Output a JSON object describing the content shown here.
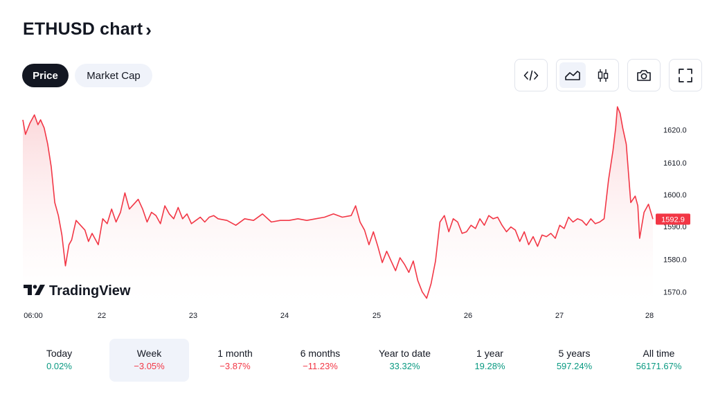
{
  "header": {
    "title": "ETHUSD chart",
    "chevron": "›"
  },
  "tabs": [
    {
      "label": "Price",
      "selected": true
    },
    {
      "label": "Market Cap",
      "selected": false
    }
  ],
  "toolbar": {
    "icons": [
      "embed-code-icon",
      "area-chart-icon",
      "candles-chart-icon",
      "camera-icon",
      "fullscreen-icon"
    ],
    "active": "area-chart-icon"
  },
  "colors": {
    "line": "#f23645",
    "fill_top": "#fbd3d6",
    "positive": "#089981",
    "negative": "#f23645",
    "text": "#131722"
  },
  "watermark": "TradingView",
  "chart_data": {
    "type": "area",
    "title": "",
    "xlabel": "",
    "ylabel": "",
    "x_tick_labels": [
      "06:00",
      "22",
      "23",
      "24",
      "25",
      "26",
      "27",
      "28"
    ],
    "y_tick_labels": [
      "1620.0",
      "1610.0",
      "1600.0",
      "1590.0",
      "1580.0",
      "1570.0"
    ],
    "ylim": [
      1566.5,
      1628.4
    ],
    "xlim": [
      0,
      7.1
    ],
    "last_price_label": "1592.9",
    "grid": false,
    "series": [
      {
        "x": [
          0,
          0.03,
          0.08,
          0.13,
          0.17,
          0.2,
          0.24,
          0.28,
          0.32,
          0.36,
          0.4,
          0.44,
          0.48,
          0.52,
          0.55,
          0.57,
          0.6,
          0.65,
          0.7,
          0.74,
          0.78,
          0.85,
          0.9,
          0.95,
          1.0,
          1.05,
          1.1,
          1.15,
          1.2,
          1.25,
          1.3,
          1.35,
          1.4,
          1.45,
          1.5,
          1.55,
          1.6,
          1.65,
          1.7,
          1.75,
          1.8,
          1.85,
          1.9,
          1.95,
          2.0,
          2.05,
          2.1,
          2.15,
          2.2,
          2.3,
          2.4,
          2.5,
          2.6,
          2.7,
          2.8,
          2.9,
          3.0,
          3.1,
          3.2,
          3.3,
          3.4,
          3.5,
          3.6,
          3.7,
          3.75,
          3.8,
          3.85,
          3.9,
          3.95,
          4.0,
          4.05,
          4.1,
          4.15,
          4.2,
          4.25,
          4.3,
          4.35,
          4.4,
          4.45,
          4.5,
          4.55,
          4.6,
          4.65,
          4.7,
          4.75,
          4.8,
          4.85,
          4.9,
          4.95,
          5.0,
          5.05,
          5.1,
          5.15,
          5.2,
          5.25,
          5.3,
          5.35,
          5.4,
          5.45,
          5.5,
          5.55,
          5.6,
          5.65,
          5.7,
          5.75,
          5.8,
          5.85,
          5.9,
          5.95,
          6.0,
          6.05,
          6.1,
          6.15,
          6.2,
          6.25,
          6.3,
          6.35,
          6.4,
          6.45,
          6.5,
          6.55,
          6.6,
          6.65,
          6.68,
          6.7,
          6.73,
          6.76,
          6.8,
          6.85,
          6.9,
          6.93,
          6.95,
          7.0,
          7.05,
          7.1
        ],
        "y": [
          1623.5,
          1619.0,
          1622.5,
          1625.0,
          1622.0,
          1623.5,
          1621.0,
          1616.0,
          1609.0,
          1598.0,
          1594.0,
          1588.0,
          1578.5,
          1585.0,
          1586.5,
          1589.0,
          1592.5,
          1591.0,
          1589.5,
          1586.0,
          1588.5,
          1585.0,
          1593.0,
          1591.5,
          1596.0,
          1592.0,
          1595.0,
          1601.0,
          1596.0,
          1597.5,
          1599.0,
          1596.0,
          1592.0,
          1595.0,
          1594.0,
          1591.5,
          1597.0,
          1594.5,
          1593.0,
          1596.5,
          1593.0,
          1594.5,
          1591.5,
          1592.5,
          1593.5,
          1592.0,
          1593.5,
          1594.0,
          1593.0,
          1592.5,
          1591.0,
          1593.0,
          1592.5,
          1594.5,
          1592.0,
          1592.5,
          1592.5,
          1593.0,
          1592.5,
          1593.0,
          1593.5,
          1594.5,
          1593.5,
          1594.0,
          1597.0,
          1592.0,
          1589.5,
          1585.0,
          1589.0,
          1584.5,
          1579.5,
          1583.0,
          1580.0,
          1577.0,
          1581.0,
          1579.0,
          1576.5,
          1580.0,
          1574.0,
          1570.5,
          1568.5,
          1573.0,
          1580.0,
          1592.0,
          1594.0,
          1589.0,
          1593.0,
          1592.0,
          1588.5,
          1589.0,
          1591.0,
          1590.0,
          1593.0,
          1591.0,
          1594.0,
          1593.0,
          1593.5,
          1591.0,
          1589.0,
          1590.5,
          1589.5,
          1586.0,
          1589.0,
          1585.0,
          1587.5,
          1584.5,
          1588.0,
          1587.5,
          1588.5,
          1587.0,
          1591.0,
          1590.0,
          1593.5,
          1592.0,
          1593.0,
          1592.5,
          1591.0,
          1593.0,
          1591.5,
          1592.0,
          1593.0,
          1605.0,
          1614.0,
          1621.0,
          1627.5,
          1625.5,
          1621.0,
          1616.0,
          1598.0,
          1600.0,
          1597.0,
          1587.0,
          1595.0,
          1597.5,
          1592.9
        ]
      }
    ]
  },
  "periods": [
    {
      "label": "Today",
      "value": "0.02%",
      "trend": "pos",
      "selected": false
    },
    {
      "label": "Week",
      "value": "−3.05%",
      "trend": "neg",
      "selected": true
    },
    {
      "label": "1 month",
      "value": "−3.87%",
      "trend": "neg",
      "selected": false
    },
    {
      "label": "6 months",
      "value": "−11.23%",
      "trend": "neg",
      "selected": false
    },
    {
      "label": "Year to date",
      "value": "33.32%",
      "trend": "pos",
      "selected": false
    },
    {
      "label": "1 year",
      "value": "19.28%",
      "trend": "pos",
      "selected": false
    },
    {
      "label": "5 years",
      "value": "597.24%",
      "trend": "pos",
      "selected": false
    },
    {
      "label": "All time",
      "value": "56171.67%",
      "trend": "pos",
      "selected": false
    }
  ]
}
